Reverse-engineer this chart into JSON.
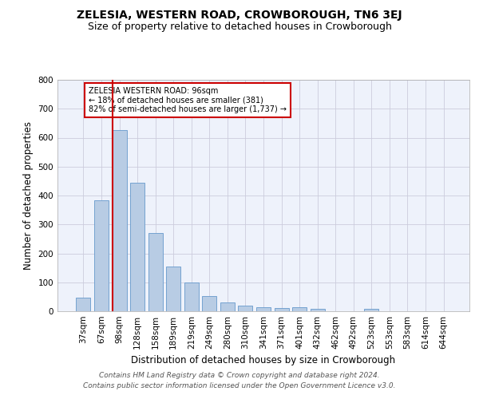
{
  "title": "ZELESIA, WESTERN ROAD, CROWBOROUGH, TN6 3EJ",
  "subtitle": "Size of property relative to detached houses in Crowborough",
  "xlabel": "Distribution of detached houses by size in Crowborough",
  "ylabel": "Number of detached properties",
  "categories": [
    "37sqm",
    "67sqm",
    "98sqm",
    "128sqm",
    "158sqm",
    "189sqm",
    "219sqm",
    "249sqm",
    "280sqm",
    "310sqm",
    "341sqm",
    "371sqm",
    "401sqm",
    "432sqm",
    "462sqm",
    "492sqm",
    "523sqm",
    "553sqm",
    "583sqm",
    "614sqm",
    "644sqm"
  ],
  "values": [
    47,
    383,
    625,
    444,
    271,
    155,
    98,
    52,
    29,
    18,
    13,
    12,
    13,
    8,
    0,
    0,
    7,
    0,
    0,
    0,
    0
  ],
  "bar_color": "#b8cce4",
  "bar_edge_color": "#6699cc",
  "highlight_bar_index": 2,
  "highlight_line_color": "#cc0000",
  "ylim": [
    0,
    800
  ],
  "yticks": [
    0,
    100,
    200,
    300,
    400,
    500,
    600,
    700,
    800
  ],
  "annotation_text": "ZELESIA WESTERN ROAD: 96sqm\n← 18% of detached houses are smaller (381)\n82% of semi-detached houses are larger (1,737) →",
  "annotation_box_color": "#ffffff",
  "annotation_box_edge": "#cc0000",
  "footer": "Contains HM Land Registry data © Crown copyright and database right 2024.\nContains public sector information licensed under the Open Government Licence v3.0.",
  "grid_color": "#ccccdd",
  "background_color": "#eef2fb",
  "title_fontsize": 10,
  "subtitle_fontsize": 9,
  "axis_label_fontsize": 8.5,
  "tick_fontsize": 7.5,
  "footer_fontsize": 6.5
}
